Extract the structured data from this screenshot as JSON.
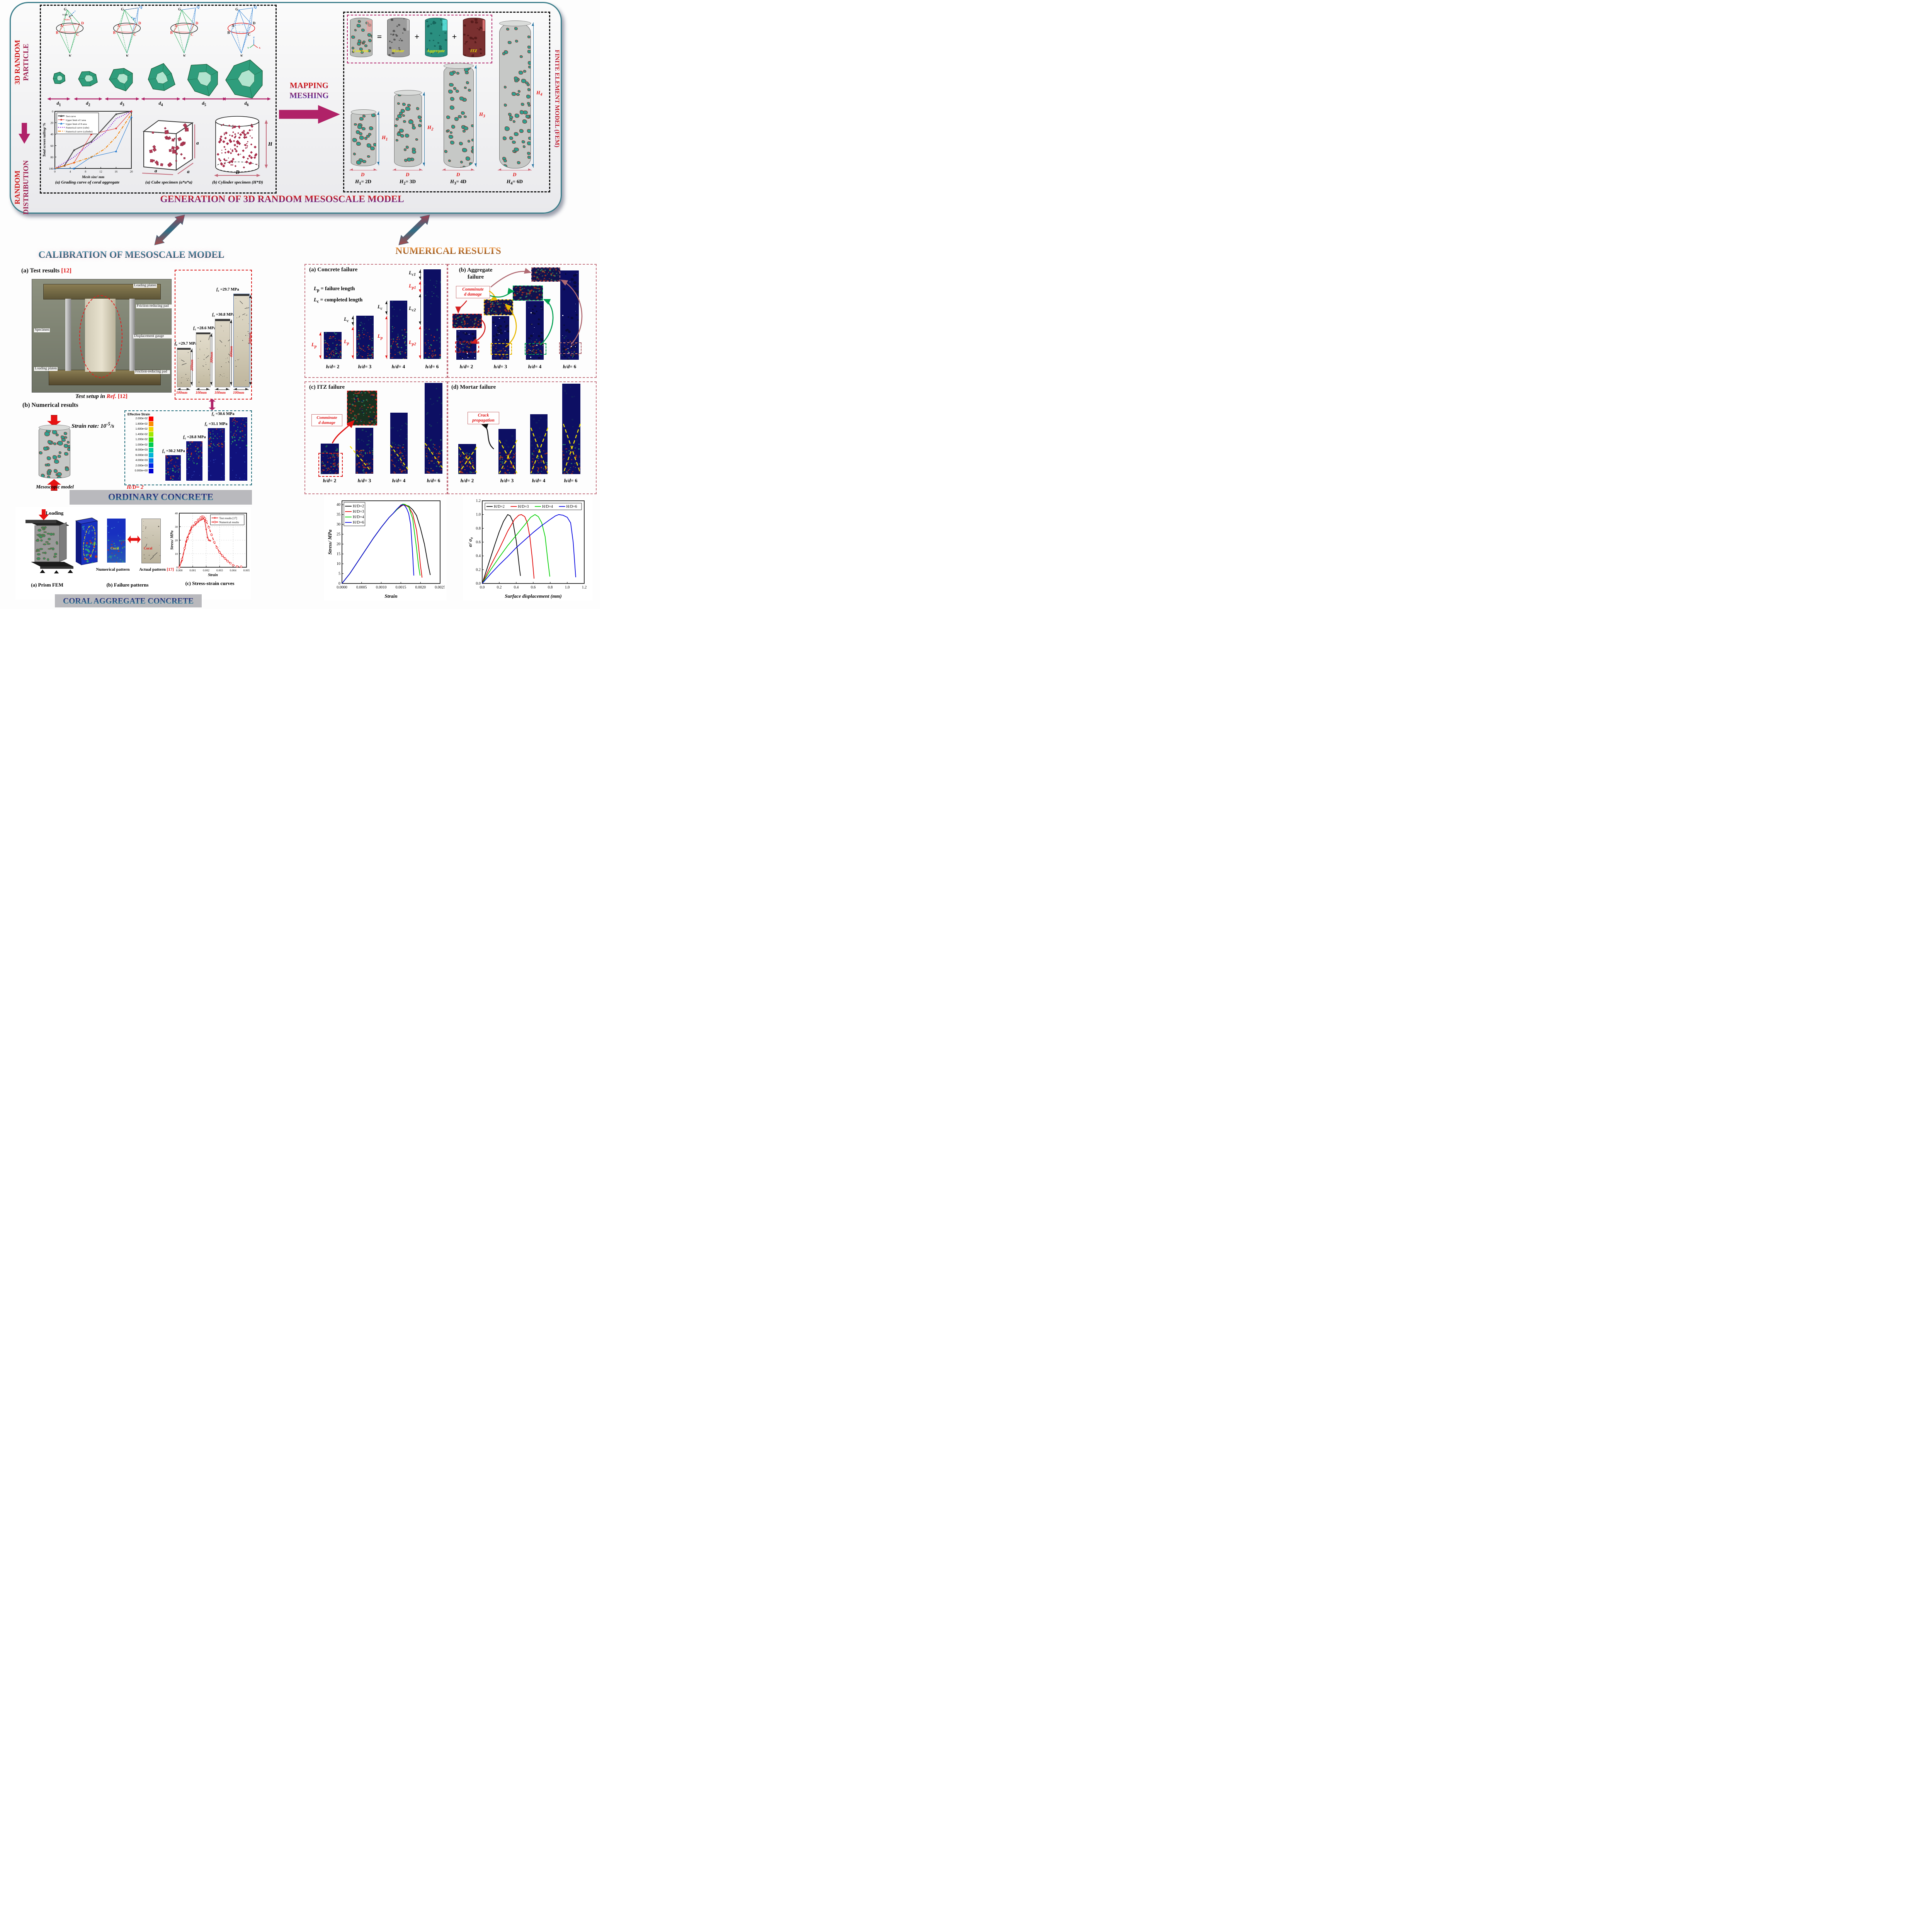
{
  "colors": {
    "magenta": "#b02268",
    "teal": "#3a7d8a",
    "red": "#e01212",
    "navy_column": "#10127c",
    "accent_title": "#5a2a9a"
  },
  "top": {
    "side_top": [
      "3D RANDOM",
      "PARTICLE"
    ],
    "side_bottom": [
      "RANDOM",
      "DISTRIBUTION"
    ],
    "mapping": [
      "MAPPING",
      "MESHING"
    ],
    "title": "GENERATION OF 3D RANDOM MESOSCALE MODEL",
    "sizes": [
      "<i>d</i><sub>1</sub>",
      "<i>d</i><sub>2</sub>",
      "<i>d</i><sub>3</sub>",
      "<i>d</i><sub>4</sub>",
      "<i>d</i><sub>5</sub>",
      "<i>d</i><sub>6</sub>"
    ],
    "vertex_labels": {
      "G": "G",
      "Q": "Q",
      "P": "P",
      "A": "A",
      "B": "B",
      "C": "C",
      "D": "D",
      "K": "K"
    },
    "vectors": [
      "v",
      "V<sub>GDC</sub>",
      "V<sub>GDA</sub>"
    ],
    "axes": [
      "Z",
      "Y",
      "X"
    ],
    "captions": {
      "grading": "(a) Grading curve of coral aggregate",
      "cube": "(a) Cube specimen (a*a*a)",
      "cylinder": "(b) Cylinder specimen (H*D)"
    },
    "cube_a": "a",
    "cyl_H": "H",
    "cyl_D": "D",
    "fem": {
      "eq_labels": [
        "Concrete",
        "Mortar",
        "Aggregate",
        "ITZ"
      ],
      "eq_ops": [
        "=",
        "+",
        "+"
      ],
      "h_labels": [
        "<i>H</i><sub>1</sub>",
        "<i>H</i><sub>2</sub>",
        "<i>H</i><sub>3</sub>",
        "<i>H</i><sub>4</sub>"
      ],
      "d_label": "D",
      "col_caps": [
        "<i>H</i><sub>1</sub>= 2D",
        "<i>H</i><sub>2</sub>= 3D",
        "<i>H</i><sub>3</sub>= 4D",
        "<i>H</i><sub>4</sub>= 6D"
      ],
      "side": "FINITE ELEMENT MODEL (FEM)"
    }
  },
  "cal": {
    "title": "CALIBRATION OF MESOSCALE MODEL",
    "a_head": "(a) Test results <span class='red'>[12]</span>",
    "photo_labels": [
      "Loading platen",
      "Friction-reducing pad",
      "Specimen",
      "Displacement gauge",
      "Loading  platen",
      "Friction-reducing pad"
    ],
    "photo_caption": "<i>Test setup in</i> <i class='red'>Ref.</i> <span class='red'>[12]</span>",
    "specimens": [
      {
        "fc": "<i>f</i><sub>c</sub> =29.7 MPa",
        "h": "200mm",
        "w": "100mm"
      },
      {
        "fc": "<i>f</i><sub>c</sub> =28.6 MPa",
        "h": "300mm",
        "w": "100mm"
      },
      {
        "fc": "<i>f</i><sub>c</sub> =30.8 MPa",
        "h": "400mm",
        "w": "100mm"
      },
      {
        "fc": "<i>f</i><sub>c</sub> =29.7 MPa",
        "h": "600mm",
        "w": "100mm"
      }
    ],
    "b_head": "(b) Numerical results",
    "strain_rate": "Strain rate: 10<sup>-5</sup>/s",
    "meso_caption": "Mesoscopic model",
    "eff": {
      "title": "Effective Strain",
      "values": [
        "2.000e-02",
        "1.800e-02",
        "1.600e-02",
        "1.400e-02",
        "1.200e-02",
        "1.000e-02",
        "8.000e-03",
        "6.000e-03",
        "4.000e-03",
        "2.000e-03",
        "0.000e+00"
      ]
    },
    "num_fc": [
      "<i>f</i><sub>c</sub> =30.2 MPa",
      "<i>f</i><sub>c</sub> =28.8 MPa",
      "<i>f</i><sub>c</sub> =31.1 MPa",
      "<i>f</i><sub>c</sub> =30.6 MPa"
    ],
    "hd": "<i>H/D</i>= 2",
    "banner1": "ORDINARY CONCRETE",
    "loading": "Loading",
    "prism_cap": "(a) Prism FEM",
    "pat_num": "Numerical pattern",
    "pat_act": "Actual pattern <span class='red'>[17]</span>",
    "coral": "Coral",
    "fail_cap": "(b) Failure patterns",
    "ss_cap": "(c) Stress-strain curves",
    "banner2": "CORAL AGGREGATE CONCRETE"
  },
  "num": {
    "title": "NUMERICAL RESULTS",
    "a_head": "(a) Concrete failure",
    "defs": [
      "<i>L</i><sub>p</sub> = failure length",
      "<i>L</i><sub>c</sub> = completed length"
    ],
    "lp": "<i>L</i><sub>p</sub>",
    "lc": "<i>L</i><sub>c</sub>",
    "lc1": "<i>L</i><sub>c1</sub>",
    "lp1": "<i>L</i><sub>p1</sub>",
    "lc2": "<i>L</i><sub>c2</sub>",
    "lp2": "<i>L</i><sub>p2</sub>",
    "hd": [
      "<i>h/d</i>= 2",
      "<i>h/d</i>= 3",
      "<i>h/d</i>= 4",
      "<i>h/d</i>= 6"
    ],
    "b_head": "(b) Aggregate<br>failure",
    "comminuted": "Comminute<br>d damage",
    "c_head": "(c) ITZ failure",
    "d_head": "(d) Mortar failure",
    "crack": "Crack<br>propagation"
  },
  "chart_data": [
    {
      "id": "grading",
      "type": "line",
      "xlabel": "Mesh size/ mm",
      "ylabel": "Total screen tailing/ %",
      "xlim": [
        0,
        20
      ],
      "ylim": [
        0,
        100
      ],
      "invert_y": true,
      "xticks": [
        0,
        4,
        8,
        12,
        16,
        20
      ],
      "xtick_labels": [
        "0",
        "4",
        "8",
        "12",
        "16",
        "20"
      ],
      "yticks": [
        0,
        20,
        40,
        60,
        80,
        100
      ],
      "ytick_labels": [
        "0",
        "20",
        "40",
        "60",
        "80",
        "100"
      ],
      "legend_pos": "tl",
      "tf": 7.5,
      "af": 9.5,
      "lf": 6.4,
      "m": [
        34,
        6,
        6,
        28
      ],
      "series": [
        {
          "name": "Test curve",
          "color": "#4d4d4d",
          "width": 2.4,
          "marker": "tri",
          "x": [
            0,
            2.5,
            5,
            9.5,
            16,
            20
          ],
          "y": [
            100,
            95,
            68,
            53,
            5,
            0
          ]
        },
        {
          "name": "Upper limit of I area",
          "color": "#e03030",
          "width": 1.1,
          "marker": "dot",
          "x": [
            0,
            5,
            9.5,
            16,
            20
          ],
          "y": [
            100,
            90,
            40.5,
            30,
            0
          ]
        },
        {
          "name": "Upper limit of II area",
          "color": "#1f77d0",
          "width": 1.1,
          "marker": "tri",
          "x": [
            0,
            5,
            9.5,
            16,
            20
          ],
          "y": [
            100,
            100,
            80,
            70,
            10
          ]
        },
        {
          "name": "Numerical curve (cube)",
          "color": "#7a00cc",
          "width": 2,
          "dash": "2 3",
          "x": [
            0,
            3,
            5,
            9.5,
            13,
            16,
            20
          ],
          "y": [
            100,
            88,
            80,
            55,
            38,
            13,
            0
          ]
        },
        {
          "name": "Numerical curve (cylinder)",
          "color": "#f08000",
          "width": 2,
          "dash": "8 3 2 3",
          "x": [
            0,
            5,
            9.5,
            13,
            16,
            20
          ],
          "y": [
            100,
            90,
            80,
            66,
            45,
            5
          ]
        }
      ]
    },
    {
      "id": "cal_ss",
      "type": "line",
      "xlabel": "Strain",
      "ylabel": "Stress/ MPa",
      "xlim": [
        0,
        0.005
      ],
      "ylim": [
        0,
        40
      ],
      "xticks": [
        0,
        0.001,
        0.002,
        0.003,
        0.004,
        0.005
      ],
      "xtick_labels": [
        "0.000",
        "0.001",
        "0.002",
        "0.003",
        "0.004",
        "0.005"
      ],
      "yticks": [
        0,
        10,
        20,
        30,
        40
      ],
      "ytick_labels": [
        "0",
        "10",
        "20",
        "30",
        "40"
      ],
      "legend_pos": "tr",
      "grid": true,
      "tf": 7.5,
      "af": 10,
      "lf": 7.2,
      "m": [
        26,
        8,
        6,
        26
      ],
      "series": [
        {
          "name": "Test results [17]",
          "color": "#e84848",
          "width": 2,
          "marker": "dot",
          "x": [
            0,
            0.0002,
            0.0004,
            0.0005,
            0.0006,
            0.0008,
            0.0009,
            0.001,
            0.0012,
            0.0014,
            0.0016,
            0.0017,
            0.0018,
            0.00185,
            0.0019,
            0.002,
            0.0021,
            0.0022,
            0.0023
          ],
          "y": [
            0,
            5,
            14,
            19,
            22,
            27,
            29.5,
            30,
            31.5,
            33.5,
            35,
            35.5,
            36,
            35.8,
            34,
            28,
            22,
            20,
            19.6
          ]
        },
        {
          "name": "Numerical results",
          "color": "#e82020",
          "width": 2,
          "dash": "7 4",
          "marker": "circle",
          "x": [
            0,
            0.0002,
            0.0004,
            0.0006,
            0.0008,
            0.001,
            0.0012,
            0.0014,
            0.0016,
            0.0017,
            0.0018,
            0.0019,
            0.002,
            0.0022,
            0.0024,
            0.0026,
            0.0028,
            0.003,
            0.0032,
            0.0034,
            0.0036,
            0.0038,
            0.004,
            0.0043,
            0.0046
          ],
          "y": [
            0,
            6,
            14,
            21,
            26,
            30.5,
            33,
            35,
            36.8,
            37.4,
            37.2,
            36,
            34,
            29.5,
            24,
            18.5,
            14.5,
            11,
            8.5,
            6.5,
            4.5,
            3,
            1.5,
            0.6,
            0.4
          ]
        }
      ]
    },
    {
      "id": "hd_ss",
      "type": "line",
      "xlabel": "Strain",
      "ylabel": "Stress/ MPa",
      "xlim": [
        0,
        0.0025
      ],
      "ylim": [
        0,
        42
      ],
      "xticks": [
        0,
        0.0005,
        0.001,
        0.0015,
        0.002,
        0.0025
      ],
      "xtick_labels": [
        "0.0000",
        "0.0005",
        "0.0010",
        "0.0015",
        "0.0020",
        "0.0025"
      ],
      "yticks": [
        0,
        5,
        10,
        15,
        20,
        25,
        30,
        35,
        40
      ],
      "ytick_labels": [
        "0",
        "5",
        "10",
        "15",
        "20",
        "25",
        "30",
        "35",
        "40"
      ],
      "legend_pos": "tl",
      "tf": 10,
      "af": 13,
      "lf": 10.5,
      "m": [
        40,
        12,
        10,
        40
      ],
      "series": [
        {
          "name": "H/D=2",
          "color": "#000000",
          "width": 1.8,
          "x": [
            0,
            0.0002,
            0.0004,
            0.0006,
            0.0008,
            0.001,
            0.0012,
            0.0013,
            0.0014,
            0.0015,
            0.00155,
            0.0016,
            0.0017,
            0.0018,
            0.0019,
            0.002,
            0.0021,
            0.0022,
            0.00225
          ],
          "y": [
            0,
            5,
            11,
            17,
            23,
            28.5,
            33.5,
            35.5,
            37.5,
            39.2,
            39.8,
            40,
            39.3,
            37.5,
            34.5,
            28,
            20,
            9,
            4.3
          ]
        },
        {
          "name": "H/D=3",
          "color": "#e00000",
          "width": 1.8,
          "x": [
            0,
            0.0002,
            0.0004,
            0.0006,
            0.0008,
            0.001,
            0.0012,
            0.0013,
            0.0014,
            0.0015,
            0.00155,
            0.0016,
            0.0017,
            0.0018,
            0.0019,
            0.00195,
            0.002,
            0.00204
          ],
          "y": [
            0,
            5,
            11,
            17,
            23,
            28.5,
            33.5,
            35.5,
            37.5,
            39.5,
            39.9,
            39.8,
            38.8,
            35.5,
            27,
            19,
            9,
            3
          ]
        },
        {
          "name": "H/D=4",
          "color": "#00d000",
          "width": 1.8,
          "x": [
            0,
            0.0002,
            0.0004,
            0.0006,
            0.0008,
            0.001,
            0.0012,
            0.0013,
            0.0014,
            0.0015,
            0.00155,
            0.0016,
            0.0017,
            0.0018,
            0.0019,
            0.00195,
            0.00199
          ],
          "y": [
            0,
            5,
            11,
            17,
            23,
            28.5,
            33.5,
            35.5,
            37.5,
            39.8,
            40.3,
            40.2,
            39,
            33,
            18,
            9,
            4
          ]
        },
        {
          "name": "H/D=6",
          "color": "#0000e0",
          "width": 1.8,
          "x": [
            0,
            0.0002,
            0.0004,
            0.0006,
            0.0008,
            0.001,
            0.0012,
            0.0013,
            0.0014,
            0.0015,
            0.00155,
            0.0016,
            0.00165,
            0.0017,
            0.00175,
            0.0018,
            0.00183
          ],
          "y": [
            0,
            5,
            11,
            17,
            23,
            28.5,
            33.5,
            35.5,
            37.8,
            39.8,
            40,
            39.5,
            38,
            35.5,
            30,
            15,
            4
          ]
        }
      ]
    },
    {
      "id": "sigma",
      "type": "line",
      "xlabel": "Surface displacement (mm)",
      "ylabel": "σ/ σ₀",
      "xlim": [
        0,
        1.2
      ],
      "ylim": [
        0,
        1.2
      ],
      "xticks": [
        0,
        0.2,
        0.4,
        0.6,
        0.8,
        1.0,
        1.2
      ],
      "xtick_labels": [
        "0.0",
        "0.2",
        "0.4",
        "0.6",
        "0.8",
        "1.0",
        "1.2"
      ],
      "yticks": [
        0,
        0.2,
        0.4,
        0.6,
        0.8,
        1.0,
        1.2
      ],
      "ytick_labels": [
        "0.0",
        "0.2",
        "0.4",
        "0.6",
        "0.8",
        "1.0",
        "1.2"
      ],
      "legend_pos": "th",
      "tf": 10,
      "af": 13,
      "lf": 10,
      "m": [
        40,
        12,
        10,
        40
      ],
      "series": [
        {
          "name": "H/D=2",
          "color": "#000000",
          "width": 1.8,
          "x": [
            0,
            0.05,
            0.1,
            0.15,
            0.2,
            0.25,
            0.3,
            0.33,
            0.36,
            0.4,
            0.42,
            0.44,
            0.45
          ],
          "y": [
            0,
            0.19,
            0.38,
            0.57,
            0.75,
            0.9,
            1.0,
            0.98,
            0.9,
            0.62,
            0.42,
            0.2,
            0.11
          ]
        },
        {
          "name": "H/D=3",
          "color": "#e00000",
          "width": 1.8,
          "x": [
            0,
            0.1,
            0.2,
            0.3,
            0.38,
            0.43,
            0.46,
            0.5,
            0.53,
            0.56,
            0.59,
            0.61
          ],
          "y": [
            0,
            0.26,
            0.5,
            0.76,
            0.93,
            0.99,
            1.0,
            0.97,
            0.88,
            0.68,
            0.35,
            0.07
          ]
        },
        {
          "name": "H/D=4",
          "color": "#00d000",
          "width": 1.8,
          "x": [
            0,
            0.1,
            0.2,
            0.3,
            0.4,
            0.5,
            0.57,
            0.62,
            0.66,
            0.7,
            0.74,
            0.77,
            0.795
          ],
          "y": [
            0,
            0.2,
            0.38,
            0.55,
            0.7,
            0.85,
            0.96,
            1.0,
            0.97,
            0.88,
            0.68,
            0.35,
            0.1
          ]
        },
        {
          "name": "H/D=6",
          "color": "#0000e0",
          "width": 1.8,
          "x": [
            0,
            0.1,
            0.2,
            0.3,
            0.4,
            0.5,
            0.6,
            0.7,
            0.8,
            0.86,
            0.9,
            0.95,
            1.0,
            1.04,
            1.07,
            1.1
          ],
          "y": [
            0,
            0.14,
            0.27,
            0.39,
            0.52,
            0.63,
            0.74,
            0.84,
            0.93,
            0.98,
            1.0,
            0.99,
            0.96,
            0.88,
            0.6,
            0.09
          ]
        }
      ]
    }
  ]
}
